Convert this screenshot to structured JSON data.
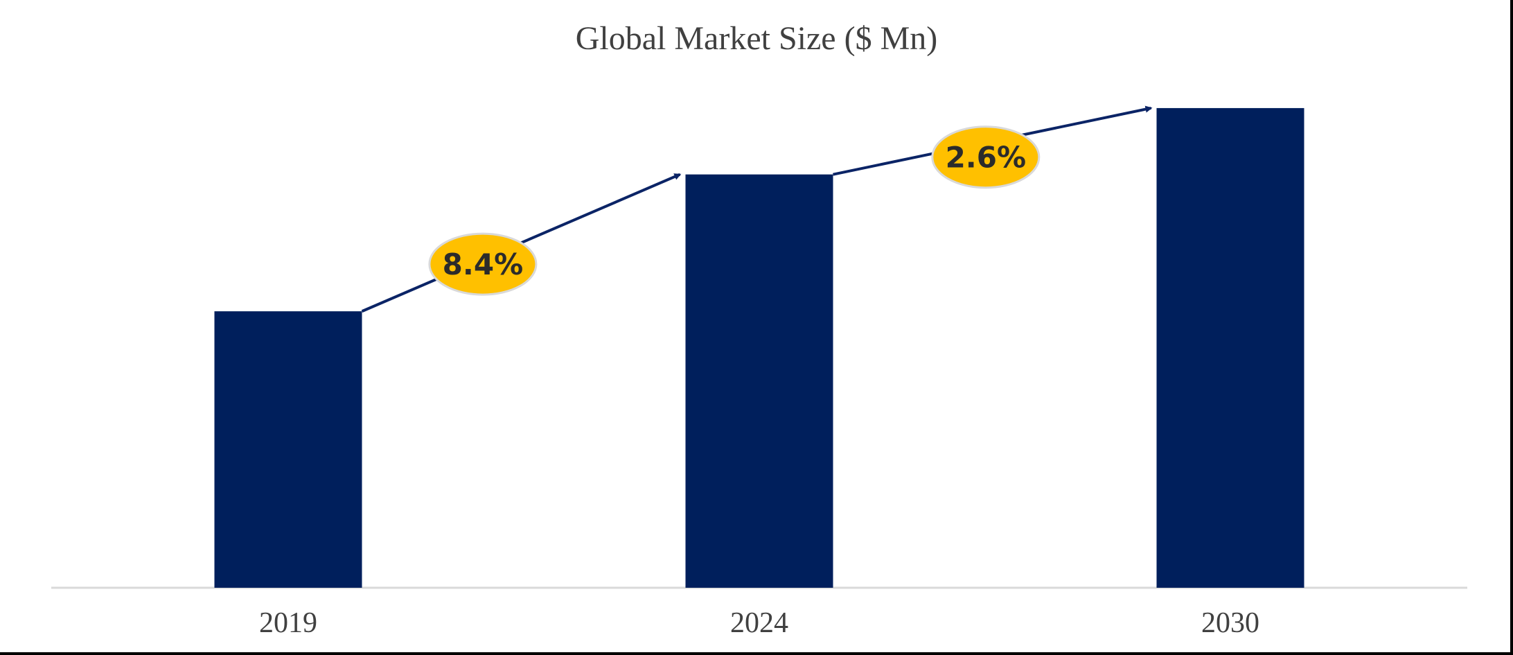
{
  "chart_data": {
    "type": "bar",
    "title": "Global Market Size ($ Mn)",
    "xlabel": "",
    "ylabel": "",
    "categories": [
      "2019",
      "2024",
      "2030"
    ],
    "values": [
      100,
      149.5,
      173.5
    ],
    "ylim": [
      0,
      180
    ],
    "grid": false,
    "legend": "none",
    "bar_color": "#001f5c",
    "annotations": [
      {
        "label": "8.4%",
        "from": "2019",
        "to": "2024"
      },
      {
        "label": "2.6%",
        "from": "2024",
        "to": "2030"
      }
    ],
    "annotation_color": "#ffc000",
    "arrow_color": "#0b2466"
  }
}
